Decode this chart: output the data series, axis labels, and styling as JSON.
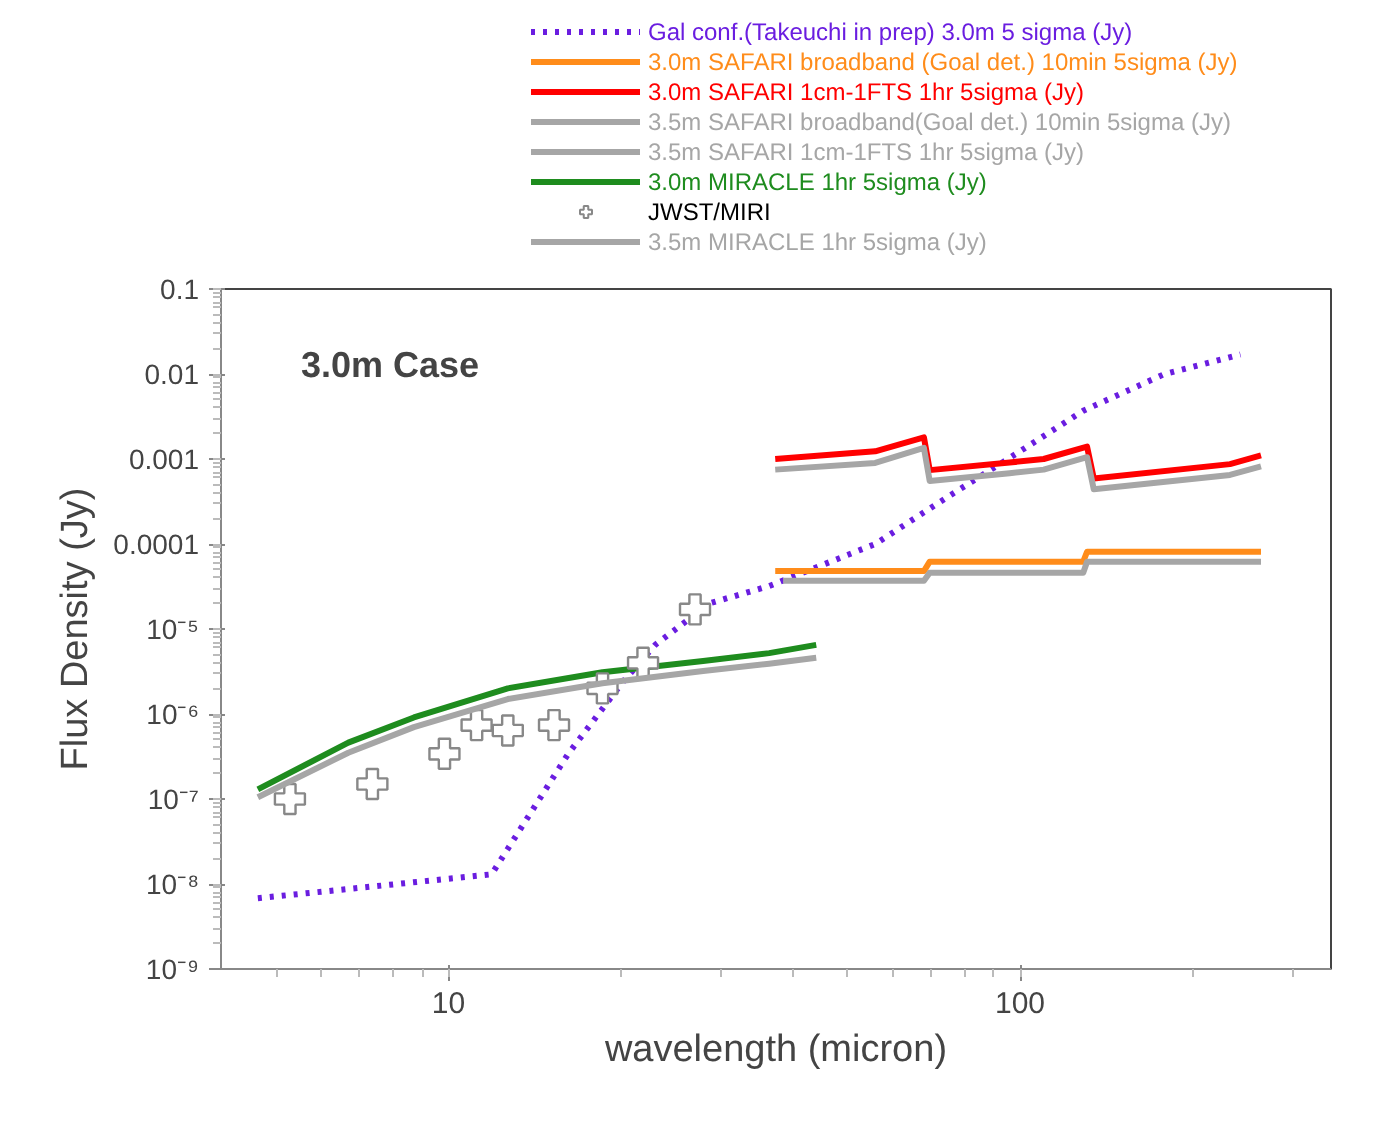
{
  "chart_data": {
    "type": "line",
    "xlabel": "wavelength (micron)",
    "ylabel": "Flux Density (Jy)",
    "log": "xy",
    "grid": false,
    "legend": "top right",
    "xlim": [
      4,
      350
    ],
    "xticks": [
      10,
      100
    ],
    "ylim": [
      1e-09,
      0.1
    ],
    "yticks": [
      0.1,
      0.01,
      0.001,
      0.0001,
      {
        "value": 1e-05,
        "label": "10⁻⁵"
      },
      {
        "value": 1e-06,
        "label": "10⁻⁶"
      },
      {
        "value": 1e-07,
        "label": "10⁻⁷"
      },
      {
        "value": 1e-08,
        "label": "10⁻⁸"
      },
      {
        "value": 1e-09,
        "label": "10⁻⁹"
      }
    ],
    "annotations": [
      "3.0m Case"
    ],
    "series": [
      {
        "name": "Gal conf.(Takeuchi in prep) 3.0m 5 sigma (Jy)",
        "color": "#6a1de0",
        "line_style": "dotted",
        "x": [
          4.64,
          11.9,
          16.2,
          20.2,
          23,
          28.6,
          36.4,
          55.8,
          75.3,
          98.4,
          129,
          179,
          243
        ],
        "values": [
          6.8e-09,
          1.3e-08,
          3.4e-07,
          2.4e-06,
          6.5e-06,
          2e-05,
          3.2e-05,
          0.0001,
          0.00037,
          0.00115,
          0.0037,
          0.01,
          0.017
        ]
      },
      {
        "name": "3.0m SAFARI broadband (Goal det.) 10min 5sigma (Jy)",
        "color": "#ff8c1a",
        "x": [
          37.3,
          67.9,
          69.5,
          129,
          131,
          264
        ],
        "values": [
          4.8e-05,
          4.8e-05,
          6.2e-05,
          6.2e-05,
          8.1e-05,
          8.1e-05
        ]
      },
      {
        "name": "3.0m SAFARI 1cm-1FTS 1hr 5sigma (Jy)",
        "color": "#ff0000",
        "x": [
          37.3,
          55.8,
          67.9,
          69.5,
          95.9,
          110,
          131,
          134.6,
          233,
          264
        ],
        "values": [
          0.001,
          0.00123,
          0.0018,
          0.00074,
          0.00091,
          0.001,
          0.0014,
          0.00059,
          0.00087,
          0.0011
        ]
      },
      {
        "name": "3.5m SAFARI broadband(Goal det.) 10min 5sigma (Jy)",
        "color": "#a6a6a6",
        "x": [
          38.5,
          67.9,
          69.5,
          129,
          131,
          264
        ],
        "values": [
          3.7e-05,
          3.7e-05,
          4.6e-05,
          4.6e-05,
          6.2e-05,
          6.2e-05
        ]
      },
      {
        "name": "3.5m SAFARI 1cm-1FTS 1hr 5sigma (Jy)",
        "color": "#a6a6a6",
        "x": [
          37.3,
          55.8,
          67.9,
          69.5,
          95.9,
          110,
          131,
          134.6,
          233,
          264
        ],
        "values": [
          0.00075,
          0.0009,
          0.00135,
          0.00055,
          0.00068,
          0.00075,
          0.00105,
          0.00044,
          0.00065,
          0.00082
        ]
      },
      {
        "name": "3.0m MIRACLE 1hr 5sigma (Jy)",
        "color": "#1e8c1e",
        "x": [
          4.64,
          6.68,
          8.7,
          12.7,
          18.6,
          27.9,
          36.4,
          44
        ],
        "values": [
          1.3e-07,
          4.6e-07,
          9.1e-07,
          2e-06,
          3.1e-06,
          4.2e-06,
          5.2e-06,
          6.5e-06
        ]
      },
      {
        "name": "JWST/MIRI",
        "type": "scatter",
        "marker": "cross",
        "color": "#ffffff",
        "x": [
          5.28,
          7.36,
          9.84,
          11.2,
          12.7,
          15.3,
          18.6,
          21.9,
          27
        ],
        "values": [
          1e-07,
          1.5e-07,
          3.4e-07,
          7.4e-07,
          6.4e-07,
          7.4e-07,
          2e-06,
          4e-06,
          1.7e-05
        ]
      },
      {
        "name": "3.5m MIRACLE 1hr 5sigma (Jy)",
        "color": "#a6a6a6",
        "x": [
          4.64,
          6.68,
          8.7,
          12.7,
          18.6,
          27.9,
          36.4,
          44
        ],
        "values": [
          1.05e-07,
          3.5e-07,
          7e-07,
          1.5e-06,
          2.3e-06,
          3.2e-06,
          3.9e-06,
          4.6e-06
        ]
      }
    ]
  }
}
